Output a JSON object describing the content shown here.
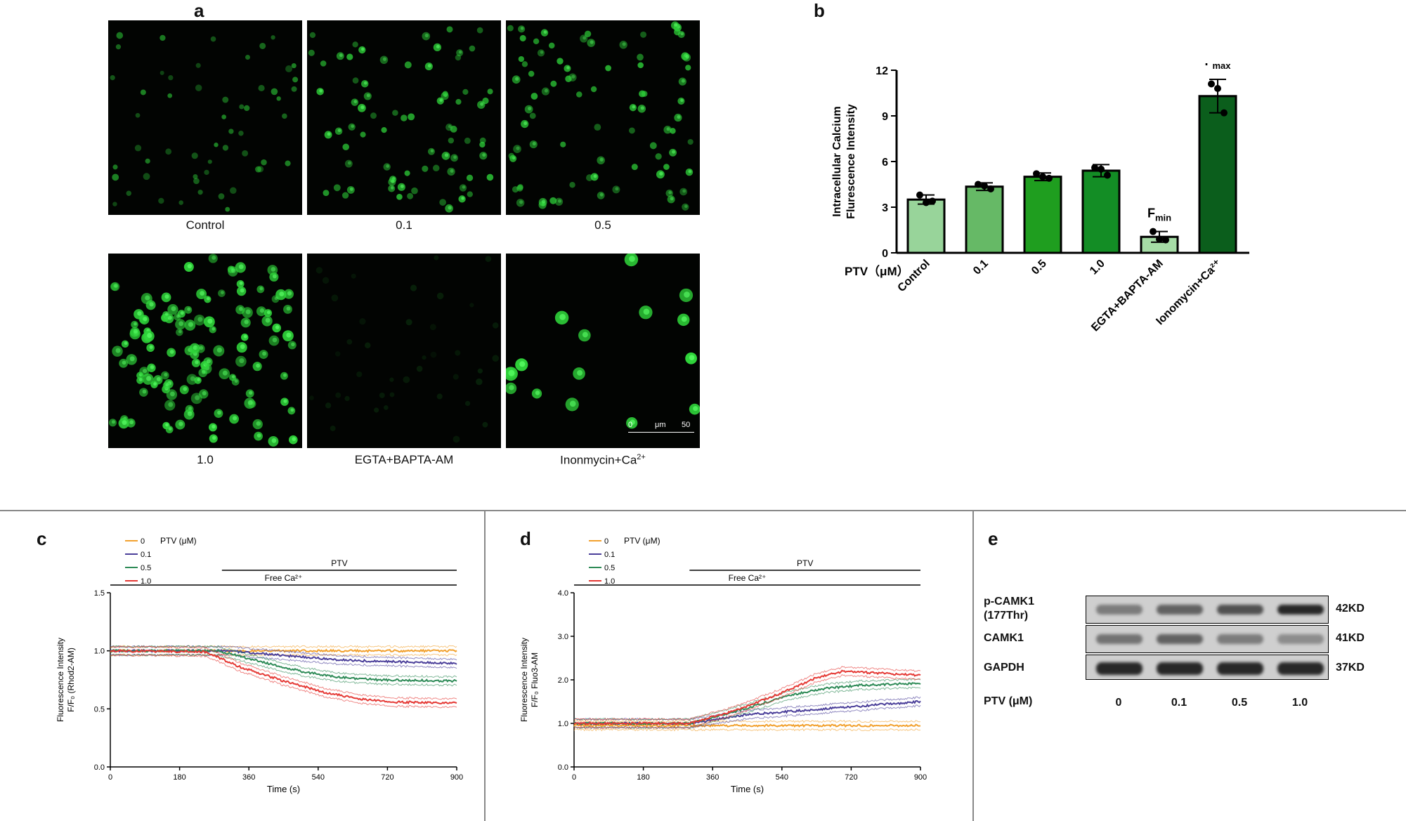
{
  "panels": {
    "a": {
      "label": "a",
      "images": [
        {
          "caption": "Control"
        },
        {
          "caption": "0.1"
        },
        {
          "caption": "0.5"
        },
        {
          "caption": "1.0"
        },
        {
          "caption": "EGTA+BAPTA-AM"
        },
        {
          "caption": "Inonmycin+Ca",
          "caption_sup": "2+"
        }
      ],
      "scalebar": {
        "start": "0",
        "unit": "μm",
        "end": "50"
      }
    },
    "b": {
      "label": "b"
    },
    "c": {
      "label": "c"
    },
    "d": {
      "label": "d"
    },
    "e": {
      "label": "e"
    }
  },
  "chart_data": [
    {
      "id": "b",
      "type": "bar",
      "ylabel_line1": "Intracellular Calcium",
      "ylabel_line2": "Flurescence Intensity",
      "xlabel_prefix": "PTV（μM）",
      "categories": [
        "Control",
        "0.1",
        "0.5",
        "1.0",
        "EGTA+BAPTA-AM",
        "Ionomycin+Ca2+"
      ],
      "values": [
        3.5,
        4.35,
        5.0,
        5.4,
        1.05,
        10.3
      ],
      "errors": [
        0.3,
        0.25,
        0.25,
        0.4,
        0.35,
        1.1
      ],
      "points": [
        [
          3.8,
          3.3,
          3.4
        ],
        [
          4.5,
          4.4,
          4.2
        ],
        [
          5.2,
          5.0,
          4.9
        ],
        [
          5.6,
          5.5,
          5.1
        ],
        [
          1.4,
          0.9,
          0.85
        ],
        [
          11.1,
          10.8,
          9.2
        ]
      ],
      "colors": [
        "#98d49a",
        "#66b966",
        "#1f9e1f",
        "#138d25",
        "#a6dca6",
        "#0b5e1c"
      ],
      "annotations": [
        {
          "category": "EGTA+BAPTA-AM",
          "text": "F",
          "sub": "min"
        },
        {
          "category": "Ionomycin+Ca2+",
          "text": "F",
          "sub": "max"
        }
      ],
      "yticks": [
        "0",
        "3",
        "6",
        "9",
        "12"
      ],
      "ylim": [
        0,
        12
      ]
    },
    {
      "id": "c",
      "type": "line",
      "ylabel_line1": "Fluorescence Intensity",
      "ylabel_line2": "F/F₀ (Rhod2-AM)",
      "xlabel": "Time (s)",
      "xticks": [
        "0",
        "180",
        "360",
        "540",
        "720",
        "900"
      ],
      "yticks": [
        "0.0",
        "0.5",
        "1.0",
        "1.5"
      ],
      "xlim": [
        0,
        900
      ],
      "ylim": [
        0,
        1.5
      ],
      "legend_title": "PTV (μM)",
      "bars": [
        {
          "text": "PTV",
          "x_start": 290,
          "x_end": 900
        },
        {
          "text": "Free Ca2+",
          "x_start": 0,
          "x_end": 900
        }
      ],
      "series": [
        {
          "name": "0",
          "color": "#f2a12e",
          "points": [
            [
              0,
              1.0
            ],
            [
              300,
              1.0
            ],
            [
              900,
              1.0
            ]
          ]
        },
        {
          "name": "0.1",
          "color": "#4b3f9a",
          "points": [
            [
              0,
              1.0
            ],
            [
              300,
              1.0
            ],
            [
              450,
              0.96
            ],
            [
              600,
              0.92
            ],
            [
              900,
              0.89
            ]
          ]
        },
        {
          "name": "0.5",
          "color": "#2e8b57",
          "points": [
            [
              0,
              1.0
            ],
            [
              280,
              1.0
            ],
            [
              400,
              0.9
            ],
            [
              500,
              0.82
            ],
            [
              600,
              0.77
            ],
            [
              700,
              0.75
            ],
            [
              900,
              0.74
            ]
          ]
        },
        {
          "name": "1.0",
          "color": "#e53935",
          "points": [
            [
              0,
              1.0
            ],
            [
              250,
              0.99
            ],
            [
              330,
              0.87
            ],
            [
              450,
              0.74
            ],
            [
              560,
              0.64
            ],
            [
              640,
              0.59
            ],
            [
              720,
              0.56
            ],
            [
              900,
              0.55
            ]
          ]
        }
      ]
    },
    {
      "id": "d",
      "type": "line",
      "ylabel_line1": "Fluorescence Intensity",
      "ylabel_line2": "F/F₀  Fluo3-AM",
      "xlabel": "Time (s)",
      "xticks": [
        "0",
        "180",
        "360",
        "540",
        "720",
        "900"
      ],
      "yticks": [
        "0.0",
        "1.0",
        "2.0",
        "3.0",
        "4.0"
      ],
      "xlim": [
        0,
        900
      ],
      "ylim": [
        0,
        4.0
      ],
      "legend_title": "PTV (μM)",
      "bars": [
        {
          "text": "PTV",
          "x_start": 300,
          "x_end": 900
        },
        {
          "text": "Free Ca2+",
          "x_start": 0,
          "x_end": 900
        }
      ],
      "series": [
        {
          "name": "0",
          "color": "#f2a12e",
          "points": [
            [
              0,
              0.95
            ],
            [
              300,
              0.95
            ],
            [
              900,
              0.95
            ]
          ]
        },
        {
          "name": "0.1",
          "color": "#4b3f9a",
          "points": [
            [
              0,
              1.0
            ],
            [
              300,
              1.0
            ],
            [
              450,
              1.2
            ],
            [
              600,
              1.3
            ],
            [
              750,
              1.4
            ],
            [
              900,
              1.5
            ]
          ]
        },
        {
          "name": "0.5",
          "color": "#2e8b57",
          "points": [
            [
              0,
              1.0
            ],
            [
              300,
              1.0
            ],
            [
              450,
              1.35
            ],
            [
              560,
              1.65
            ],
            [
              650,
              1.8
            ],
            [
              750,
              1.88
            ],
            [
              900,
              1.92
            ]
          ]
        },
        {
          "name": "1.0",
          "color": "#e53935",
          "points": [
            [
              0,
              1.0
            ],
            [
              300,
              1.0
            ],
            [
              420,
              1.3
            ],
            [
              540,
              1.7
            ],
            [
              630,
              2.05
            ],
            [
              700,
              2.2
            ],
            [
              800,
              2.15
            ],
            [
              900,
              2.1
            ]
          ]
        }
      ]
    }
  ],
  "blot": {
    "rows": [
      {
        "label": "p-CAMK1",
        "label2": "(177Thr)",
        "kd": "42KD"
      },
      {
        "label": "CAMK1",
        "label2": "",
        "kd": "41KD"
      },
      {
        "label": "GAPDH",
        "label2": "",
        "kd": "37KD"
      }
    ],
    "lanes_label": "PTV (μM)",
    "lanes": [
      "0",
      "0.1",
      "0.5",
      "1.0"
    ],
    "band_intensity": [
      [
        0.45,
        0.6,
        0.7,
        0.95
      ],
      [
        0.5,
        0.6,
        0.45,
        0.35
      ],
      [
        0.95,
        0.95,
        0.95,
        0.95
      ]
    ]
  }
}
